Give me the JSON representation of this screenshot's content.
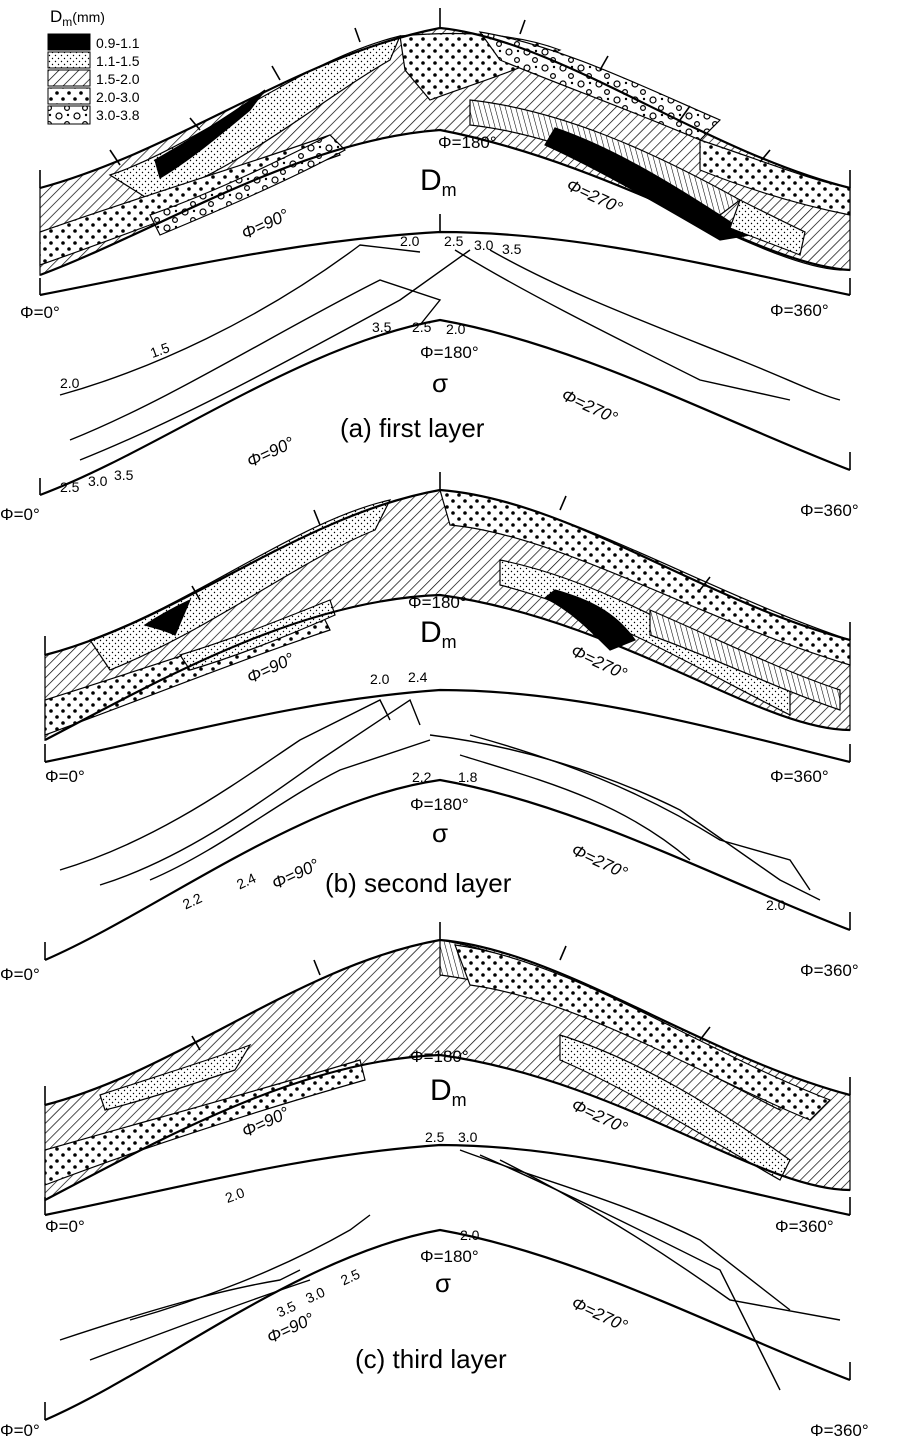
{
  "legend": {
    "title_main": "D",
    "title_sub": "m",
    "title_unit": "(mm)",
    "items": [
      {
        "range": "0.9-1.1",
        "pattern": "solid-black"
      },
      {
        "range": "1.1-1.5",
        "pattern": "fine-dots"
      },
      {
        "range": "1.5-2.0",
        "pattern": "diagonal-hatch"
      },
      {
        "range": "2.0-3.0",
        "pattern": "coarse-dots"
      },
      {
        "range": "3.0-3.8",
        "pattern": "small-circles"
      }
    ]
  },
  "panels": [
    {
      "caption": "(a)  first  layer",
      "dm_label_main": "D",
      "dm_label_sub": "m",
      "sigma_label": "σ",
      "upper_angles": {
        "a0": "Φ=0°",
        "a90": "Φ=90°",
        "a180": "Φ=180°",
        "a270": "Φ=270°",
        "a360": "Φ=360°"
      },
      "lower_angles": {
        "a0": "Φ=0°",
        "a90": "Φ=90°",
        "a180": "Φ=180°",
        "a270": "Φ=270°",
        "a360": "Φ=360°"
      },
      "contour_labels": [
        "2.0",
        "2.5",
        "3.0",
        "3.5",
        "1.5",
        "2.0",
        "3.5",
        "2.5",
        "2.0",
        "2.5",
        "3.0",
        "3.5"
      ]
    },
    {
      "caption": "(b) second  layer",
      "dm_label_main": "D",
      "dm_label_sub": "m",
      "sigma_label": "σ",
      "upper_angles": {
        "a0": "Φ=0°",
        "a90": "Φ=90°",
        "a180": "Φ=180°",
        "a270": "Φ=270°",
        "a360": "Φ=360°"
      },
      "lower_angles": {
        "a0": "Φ=0°",
        "a90": "Φ=90°",
        "a180": "Φ=180°",
        "a270": "Φ=270°",
        "a360": "Φ=360°"
      },
      "contour_labels": [
        "2.0",
        "2.4",
        "2.2",
        "1.8",
        "2.4",
        "2.2",
        "2.0"
      ]
    },
    {
      "caption": "(c) third  layer",
      "dm_label_main": "D",
      "dm_label_sub": "m",
      "sigma_label": "σ",
      "upper_angles": {
        "a0": "Φ=0°",
        "a90": "Φ=90°",
        "a180": "Φ=180°",
        "a270": "Φ=270°",
        "a360": "Φ=360°"
      },
      "lower_angles": {
        "a0": "Φ=0°",
        "a90": "Φ=90°",
        "a180": "Φ=180°",
        "a270": "Φ=270°",
        "a360": "Φ=360°"
      },
      "contour_labels": [
        "2.5",
        "3.0",
        "2.0",
        "2.0",
        "3.5",
        "3.0",
        "2.5"
      ]
    }
  ]
}
